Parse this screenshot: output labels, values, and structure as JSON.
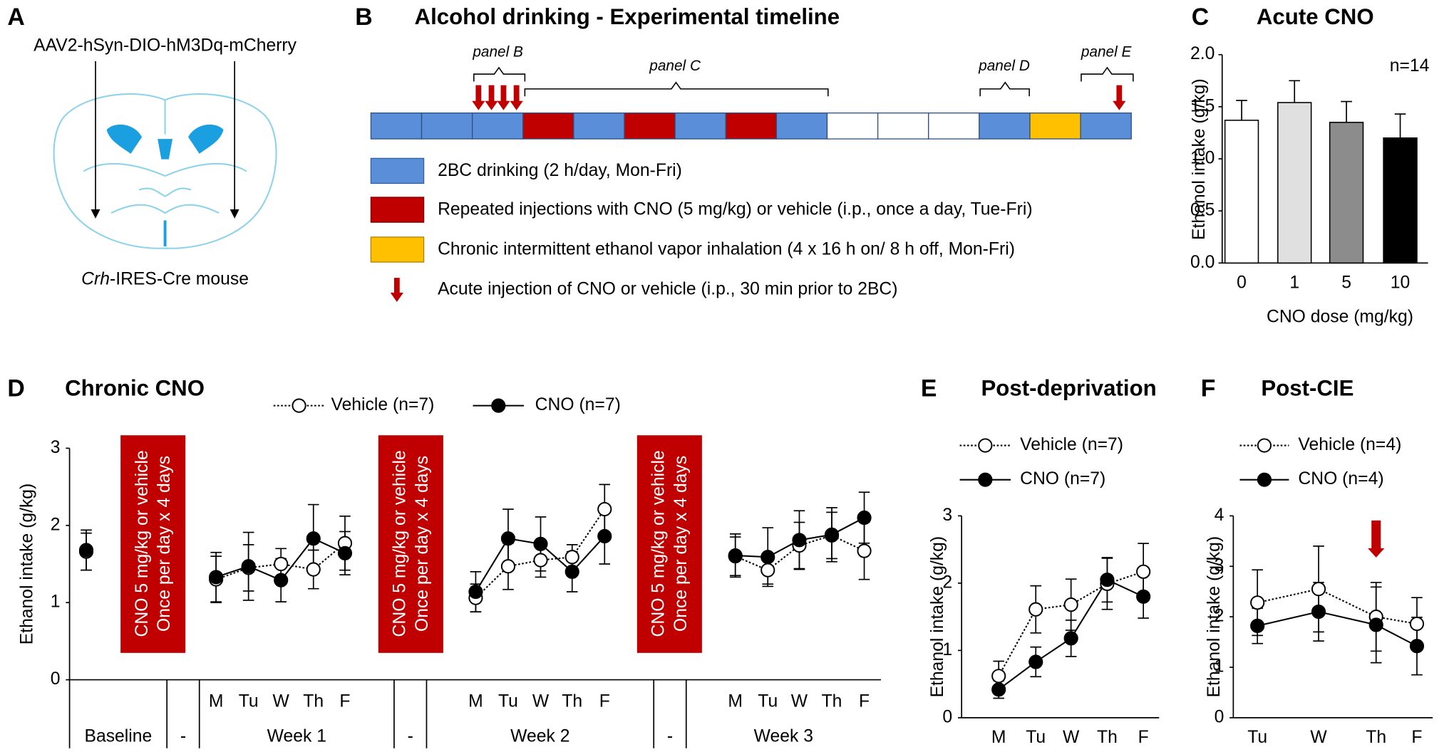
{
  "panel_a": {
    "letter": "A",
    "vector": "AAV2-hSyn-DIO-hM3Dq-mCherry",
    "mouse_italic": "Crh",
    "mouse_rest": "-IRES-Cre mouse"
  },
  "panel_b": {
    "letter": "B",
    "title": "Alcohol drinking - Experimental timeline",
    "brackets": [
      "panel B",
      "panel C",
      "panel D",
      "panel E"
    ],
    "legend": [
      "2BC drinking (2 h/day, Mon-Fri)",
      "Repeated injections with CNO (5 mg/kg) or vehicle (i.p., once a day, Tue-Fri)",
      "Chronic intermittent ethanol vapor inhalation (4 x 16 h on/ 8 h off, Mon-Fri)",
      "Acute injection of CNO or vehicle (i.p., 30 min prior to 2BC)"
    ]
  },
  "chart_data": [
    {
      "type": "bar",
      "panel": "C",
      "title": "Acute CNO",
      "categories": [
        "0",
        "1",
        "5",
        "10"
      ],
      "values": [
        1.37,
        1.54,
        1.35,
        1.2
      ],
      "errors": [
        0.19,
        0.21,
        0.2,
        0.23
      ],
      "colors": [
        "#ffffff",
        "#e0e0e0",
        "#8c8c8c",
        "#000000"
      ],
      "ylim": [
        0,
        2
      ],
      "yticks": [
        {
          "value": 0,
          "label": "0.0"
        },
        {
          "value": 0.5,
          "label": "0.5"
        },
        {
          "value": 1,
          "label": "1.0"
        },
        {
          "value": 1.5,
          "label": "1.5"
        },
        {
          "value": 2,
          "label": "2.0"
        }
      ],
      "xlabel": "CNO dose (mg/kg)",
      "ylabel": "Ethanol intake (g/kg)",
      "annotation": "n=14"
    },
    {
      "type": "line",
      "panel": "D",
      "title": "Chronic CNO",
      "categories": [
        null,
        null,
        "M",
        "Tu",
        "W",
        "Th",
        "F",
        null,
        "M",
        "Tu",
        "W",
        "Th",
        "F",
        null,
        "M",
        "Tu",
        "W",
        "Th",
        "F"
      ],
      "groups": [
        {
          "label": "Baseline",
          "size": 1
        },
        {
          "label": "-",
          "size": 1
        },
        {
          "label": "Week 1",
          "size": 5
        },
        {
          "label": "-",
          "size": 1
        },
        {
          "label": "Week 2",
          "size": 5
        },
        {
          "label": "-",
          "size": 1
        },
        {
          "label": "Week 3",
          "size": 5
        }
      ],
      "treatment_label": [
        "CNO 5 mg/kg or vehicle",
        "Once per day x 4 days"
      ],
      "series": [
        {
          "name": "Vehicle (n=7)",
          "color": "#000000",
          "marker_fill": "#ffffff",
          "line_style": "dotted",
          "values": [
            1.66,
            null,
            1.3,
            1.45,
            1.5,
            1.43,
            1.77,
            null,
            1.06,
            1.47,
            1.55,
            1.59,
            2.21,
            null,
            1.6,
            1.42,
            1.74,
            1.87,
            1.67
          ],
          "errors": [
            0.24,
            null,
            0.3,
            0.3,
            0.2,
            0.25,
            0.35,
            null,
            0.18,
            0.3,
            0.22,
            0.16,
            0.32,
            null,
            0.25,
            0.18,
            0.3,
            0.3,
            0.37
          ]
        },
        {
          "name": "CNO (n=7)",
          "color": "#000000",
          "marker_fill": "#000000",
          "line_style": "solid",
          "values": [
            1.68,
            null,
            1.33,
            1.47,
            1.29,
            1.83,
            1.64,
            null,
            1.14,
            1.83,
            1.76,
            1.4,
            1.86,
            null,
            1.61,
            1.59,
            1.81,
            1.88,
            2.1
          ],
          "errors": [
            0.26,
            null,
            0.32,
            0.44,
            0.28,
            0.44,
            0.28,
            null,
            0.26,
            0.38,
            0.35,
            0.26,
            0.36,
            null,
            0.28,
            0.38,
            0.38,
            0.35,
            0.33
          ]
        }
      ],
      "ylim": [
        0,
        3
      ],
      "yticks": [
        0,
        1,
        2,
        3
      ],
      "ylabel": "Ethanol intake (g/kg)"
    },
    {
      "type": "line",
      "panel": "E",
      "title": "Post-deprivation",
      "categories": [
        "M",
        "Tu",
        "W",
        "Th",
        "F"
      ],
      "series": [
        {
          "name": "Vehicle (n=7)",
          "color": "#000000",
          "marker_fill": "#ffffff",
          "line_style": "dotted",
          "values": [
            0.62,
            1.61,
            1.68,
            1.99,
            2.17
          ],
          "errors": [
            0.22,
            0.35,
            0.38,
            0.38,
            0.42
          ]
        },
        {
          "name": "CNO (n=7)",
          "color": "#000000",
          "marker_fill": "#000000",
          "line_style": "solid",
          "values": [
            0.42,
            0.83,
            1.18,
            2.05,
            1.8
          ],
          "errors": [
            0.13,
            0.22,
            0.27,
            0.33,
            0.32
          ]
        }
      ],
      "ylim": [
        0,
        3
      ],
      "yticks": [
        0,
        1,
        2,
        3
      ],
      "ylabel": "Ethanol intake (g/kg)"
    },
    {
      "type": "line",
      "panel": "F",
      "title": "Post-CIE",
      "categories": [
        "Tu",
        "W",
        "Th",
        "F"
      ],
      "series": [
        {
          "name": "Vehicle (n=4)",
          "color": "#000000",
          "marker_fill": "#ffffff",
          "line_style": "dotted",
          "values": [
            2.28,
            2.55,
            2.0,
            1.86
          ],
          "errors": [
            0.65,
            0.85,
            0.68,
            0.52
          ]
        },
        {
          "name": "CNO (n=4)",
          "color": "#000000",
          "marker_fill": "#000000",
          "line_style": "solid",
          "values": [
            1.82,
            2.1,
            1.84,
            1.42
          ],
          "errors": [
            0.35,
            0.58,
            0.75,
            0.57
          ]
        }
      ],
      "ylim": [
        0,
        4
      ],
      "yticks": [
        0,
        1,
        2,
        3,
        4
      ],
      "ylabel": "Ethanol intake (g/kg)"
    }
  ]
}
